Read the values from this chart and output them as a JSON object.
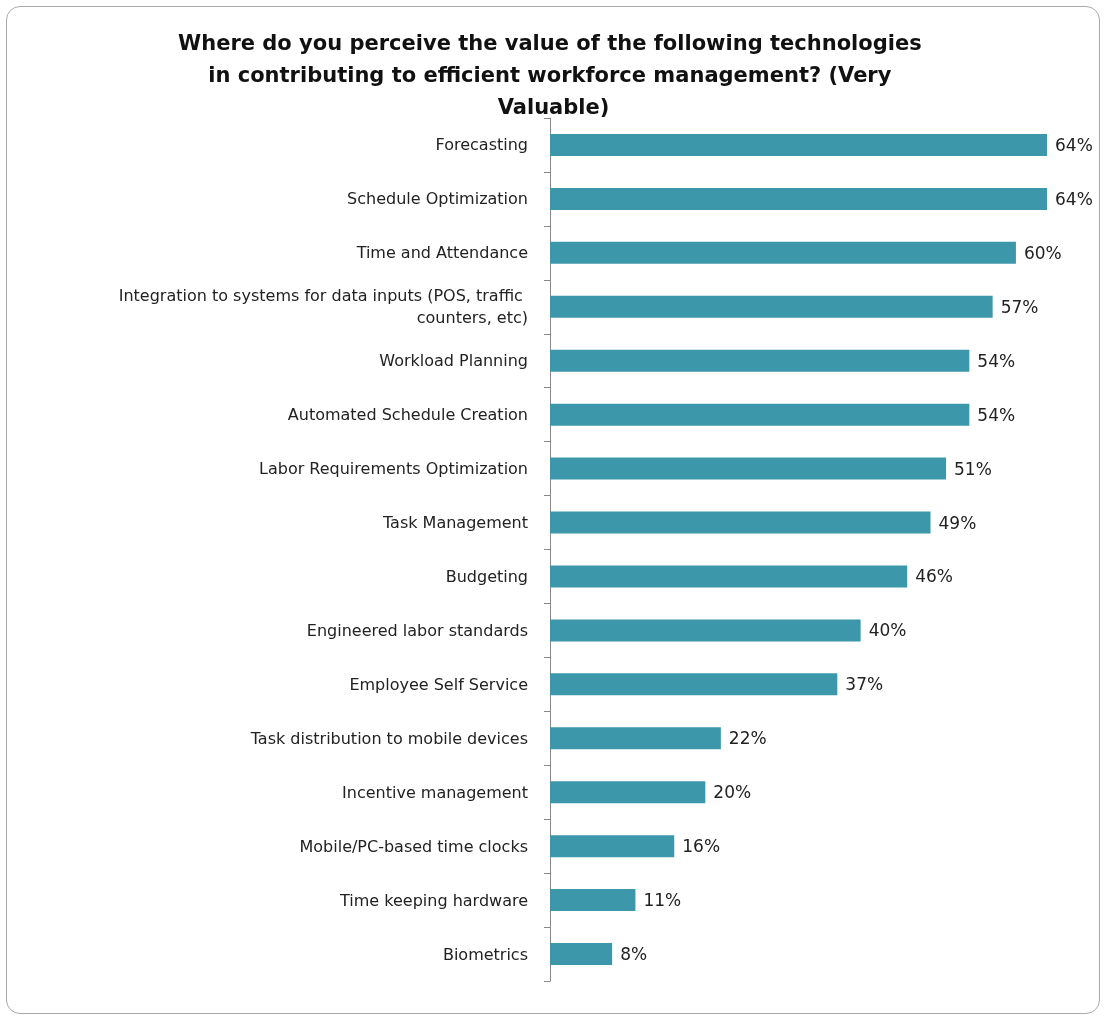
{
  "chart_data": {
    "type": "bar",
    "orientation": "horizontal",
    "title": "Where do you perceive the value of the following technologies in contributing to efficient workforce management? (Very Valuable)",
    "categories": [
      "Forecasting",
      "Schedule Optimization",
      "Time and Attendance",
      "Integration to systems for data inputs (POS, traffic counters, etc)",
      "Workload Planning",
      "Automated Schedule Creation",
      "Labor Requirements Optimization",
      "Task Management",
      "Budgeting",
      "Engineered labor standards",
      "Employee Self Service",
      "Task distribution to mobile devices",
      "Incentive management",
      "Mobile/PC-based time clocks",
      "Time keeping hardware",
      "Biometrics"
    ],
    "values": [
      64,
      64,
      60,
      57,
      54,
      54,
      51,
      49,
      46,
      40,
      37,
      22,
      20,
      16,
      11,
      8
    ],
    "value_labels": [
      "64%",
      "64%",
      "60%",
      "57%",
      "54%",
      "54%",
      "51%",
      "49%",
      "46%",
      "40%",
      "37%",
      "22%",
      "20%",
      "16%",
      "11%",
      "8%"
    ],
    "color": "#3d97ab"
  }
}
